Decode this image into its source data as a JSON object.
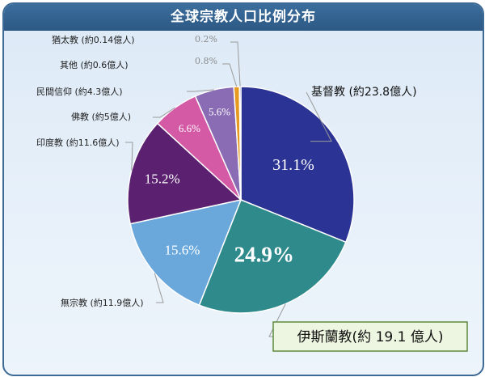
{
  "title": "全球宗教人口比例分布",
  "chart_data": {
    "type": "pie",
    "title": "全球宗教人口比例分布",
    "slices": [
      {
        "name": "基督教",
        "label": "基督教 (約23.8億人)",
        "value": 31.1,
        "pct_label": "31.1%",
        "color": "#2b3494"
      },
      {
        "name": "伊斯蘭教",
        "label": "伊斯蘭教(約 19.1 億人)",
        "value": 24.9,
        "pct_label": "24.9%",
        "color": "#2f8a8c"
      },
      {
        "name": "無宗教",
        "label": "無宗教 (約11.9億人)",
        "value": 15.6,
        "pct_label": "15.6%",
        "color": "#6aa8dc"
      },
      {
        "name": "印度教",
        "label": "印度教 (約11.6億人)",
        "value": 15.2,
        "pct_label": "15.2%",
        "color": "#5b2170"
      },
      {
        "name": "佛教",
        "label": "佛教 (約5億人)",
        "value": 6.6,
        "pct_label": "6.6%",
        "color": "#d45aa6"
      },
      {
        "name": "民間信仰",
        "label": "民間信仰 (約4.3億人)",
        "value": 5.6,
        "pct_label": "5.6%",
        "color": "#8a6cb4"
      },
      {
        "name": "其他",
        "label": "其他 (約0.6億人)",
        "value": 0.8,
        "pct_label": "0.8%",
        "color": "#e69a20"
      },
      {
        "name": "猶太教",
        "label": "猶太教 (約0.14億人)",
        "value": 0.2,
        "pct_label": "0.2%",
        "color": "#4a3a8c"
      }
    ]
  }
}
